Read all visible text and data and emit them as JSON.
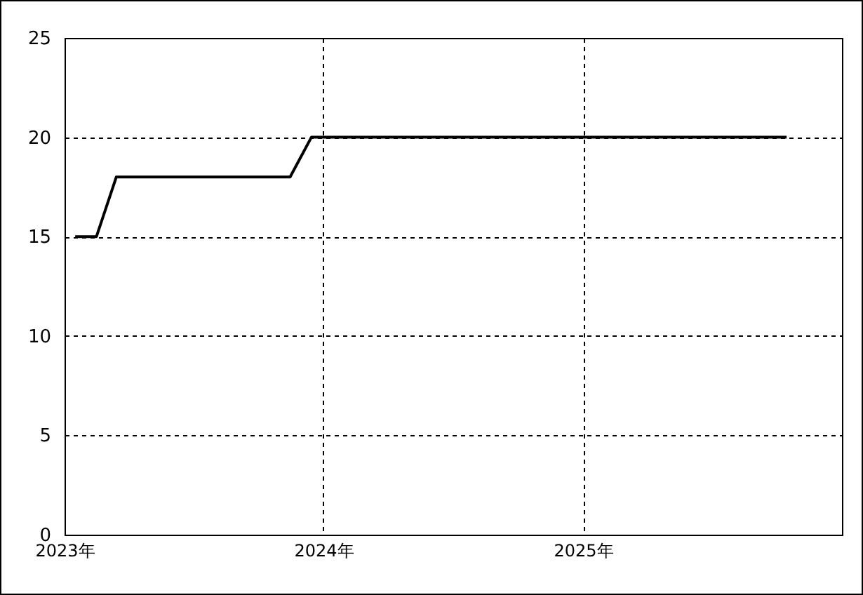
{
  "chart_data": {
    "type": "line",
    "x": [
      "2023-01-16",
      "2023-02-15",
      "2023-03-15",
      "2023-11-15",
      "2023-12-15",
      "2025-10-15"
    ],
    "series": [
      {
        "color": "#000000",
        "values": [
          15,
          15,
          18,
          18,
          20,
          20
        ]
      }
    ],
    "xlim": [
      "2023-01-01",
      "2026-01-01"
    ],
    "xticks": [
      {
        "value": "2023",
        "label": "2023年"
      },
      {
        "value": "2024",
        "label": "2024年"
      },
      {
        "value": "2025",
        "label": "2025年"
      }
    ],
    "ylim": [
      0,
      25
    ],
    "yticks": [
      0,
      5,
      10,
      15,
      20,
      25
    ],
    "grid": true,
    "line_style": "solid"
  }
}
